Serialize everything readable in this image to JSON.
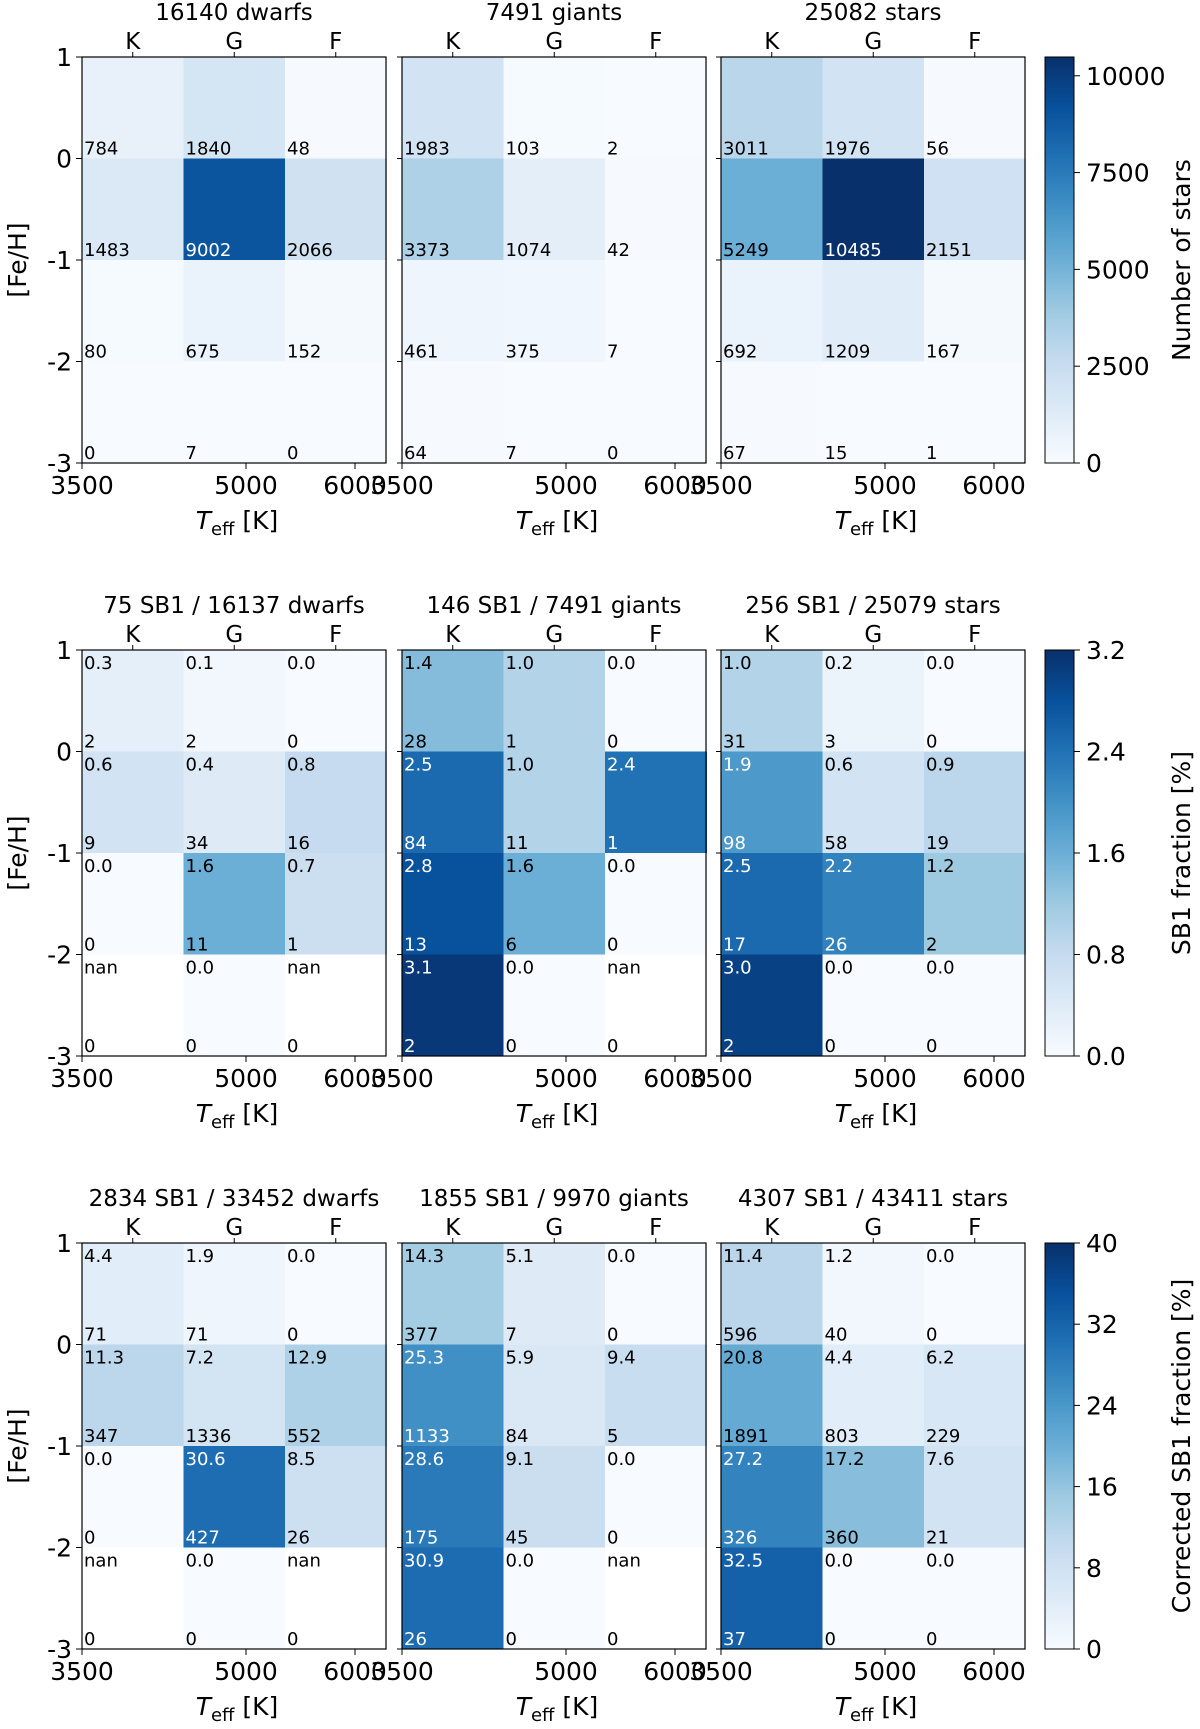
{
  "chart_data": {
    "type": "heatmap",
    "x_ticks": [
      "3500",
      "5000",
      "6000"
    ],
    "y_ticks": [
      "1",
      "0",
      "-1",
      "-2",
      "-3"
    ],
    "spectral_types": [
      "K",
      "G",
      "F"
    ],
    "ylabel": "[Fe/H]",
    "xlabel_main": "T",
    "xlabel_sub": "eff",
    "xlabel_unit": "[K]",
    "rows": [
      {
        "colorbar": {
          "label": "Number of stars",
          "ticks": [
            "0",
            "2500",
            "5000",
            "7500",
            "10000"
          ],
          "min": 0,
          "max": 10485
        },
        "panels": [
          {
            "title": "16140 dwarfs",
            "values": [
              [
                784,
                1840,
                48
              ],
              [
                1483,
                9002,
                2066
              ],
              [
                80,
                675,
                152
              ],
              [
                0,
                7,
                0
              ]
            ],
            "value_labels": [
              [
                "784",
                "1840",
                "48"
              ],
              [
                "1483",
                "9002",
                "2066"
              ],
              [
                "80",
                "675",
                "152"
              ],
              [
                "0",
                "7",
                "0"
              ]
            ],
            "count_labels": []
          },
          {
            "title": "7491 giants",
            "values": [
              [
                1983,
                103,
                2
              ],
              [
                3373,
                1074,
                42
              ],
              [
                461,
                375,
                7
              ],
              [
                64,
                7,
                0
              ]
            ],
            "value_labels": [
              [
                "1983",
                "103",
                "2"
              ],
              [
                "3373",
                "1074",
                "42"
              ],
              [
                "461",
                "375",
                "7"
              ],
              [
                "64",
                "7",
                "0"
              ]
            ],
            "count_labels": []
          },
          {
            "title": "25082 stars",
            "values": [
              [
                3011,
                1976,
                56
              ],
              [
                5249,
                10485,
                2151
              ],
              [
                692,
                1209,
                167
              ],
              [
                67,
                15,
                1
              ]
            ],
            "value_labels": [
              [
                "3011",
                "1976",
                "56"
              ],
              [
                "5249",
                "10485",
                "2151"
              ],
              [
                "692",
                "1209",
                "167"
              ],
              [
                "67",
                "15",
                "1"
              ]
            ],
            "count_labels": []
          }
        ]
      },
      {
        "colorbar": {
          "label": "SB1 fraction [%]",
          "ticks": [
            "0.0",
            "0.8",
            "1.6",
            "2.4",
            "3.2"
          ],
          "min": 0,
          "max": 3.2
        },
        "panels": [
          {
            "title": "75 SB1 / 16137 dwarfs",
            "values": [
              [
                0.3,
                0.1,
                0.0
              ],
              [
                0.6,
                0.4,
                0.8
              ],
              [
                0.0,
                1.6,
                0.7
              ],
              [
                null,
                0.0,
                null
              ]
            ],
            "value_labels": [
              [
                "0.3",
                "0.1",
                "0.0"
              ],
              [
                "0.6",
                "0.4",
                "0.8"
              ],
              [
                "0.0",
                "1.6",
                "0.7"
              ],
              [
                "nan",
                "0.0",
                "nan"
              ]
            ],
            "count_labels": [
              [
                "2",
                "2",
                "0"
              ],
              [
                "9",
                "34",
                "16"
              ],
              [
                "0",
                "11",
                "1"
              ],
              [
                "0",
                "0",
                "0"
              ]
            ]
          },
          {
            "title": "146 SB1 / 7491 giants",
            "values": [
              [
                1.4,
                1.0,
                0.0
              ],
              [
                2.5,
                1.0,
                2.4
              ],
              [
                2.8,
                1.6,
                0.0
              ],
              [
                3.1,
                0.0,
                null
              ]
            ],
            "value_labels": [
              [
                "1.4",
                "1.0",
                "0.0"
              ],
              [
                "2.5",
                "1.0",
                "2.4"
              ],
              [
                "2.8",
                "1.6",
                "0.0"
              ],
              [
                "3.1",
                "0.0",
                "nan"
              ]
            ],
            "count_labels": [
              [
                "28",
                "1",
                "0"
              ],
              [
                "84",
                "11",
                "1"
              ],
              [
                "13",
                "6",
                "0"
              ],
              [
                "2",
                "0",
                "0"
              ]
            ]
          },
          {
            "title": "256 SB1 / 25079 stars",
            "values": [
              [
                1.0,
                0.2,
                0.0
              ],
              [
                1.9,
                0.6,
                0.9
              ],
              [
                2.5,
                2.2,
                1.2
              ],
              [
                3.0,
                0.0,
                0.0
              ]
            ],
            "value_labels": [
              [
                "1.0",
                "0.2",
                "0.0"
              ],
              [
                "1.9",
                "0.6",
                "0.9"
              ],
              [
                "2.5",
                "2.2",
                "1.2"
              ],
              [
                "3.0",
                "0.0",
                "0.0"
              ]
            ],
            "count_labels": [
              [
                "31",
                "3",
                "0"
              ],
              [
                "98",
                "58",
                "19"
              ],
              [
                "17",
                "26",
                "2"
              ],
              [
                "2",
                "0",
                "0"
              ]
            ]
          }
        ]
      },
      {
        "colorbar": {
          "label": "Corrected SB1 fraction [%]",
          "ticks": [
            "0",
            "8",
            "16",
            "24",
            "32",
            "40"
          ],
          "min": 0,
          "max": 40
        },
        "panels": [
          {
            "title": "2834 SB1 / 33452 dwarfs",
            "values": [
              [
                4.4,
                1.9,
                0.0
              ],
              [
                11.3,
                7.2,
                12.9
              ],
              [
                0.0,
                30.6,
                8.5
              ],
              [
                null,
                0.0,
                null
              ]
            ],
            "value_labels": [
              [
                "4.4",
                "1.9",
                "0.0"
              ],
              [
                "11.3",
                "7.2",
                "12.9"
              ],
              [
                "0.0",
                "30.6",
                "8.5"
              ],
              [
                "nan",
                "0.0",
                "nan"
              ]
            ],
            "count_labels": [
              [
                "71",
                "71",
                "0"
              ],
              [
                "347",
                "1336",
                "552"
              ],
              [
                "0",
                "427",
                "26"
              ],
              [
                "0",
                "0",
                "0"
              ]
            ]
          },
          {
            "title": "1855 SB1 / 9970 giants",
            "values": [
              [
                14.3,
                5.1,
                0.0
              ],
              [
                25.3,
                5.9,
                9.4
              ],
              [
                28.6,
                9.1,
                0.0
              ],
              [
                30.9,
                0.0,
                null
              ]
            ],
            "value_labels": [
              [
                "14.3",
                "5.1",
                "0.0"
              ],
              [
                "25.3",
                "5.9",
                "9.4"
              ],
              [
                "28.6",
                "9.1",
                "0.0"
              ],
              [
                "30.9",
                "0.0",
                "nan"
              ]
            ],
            "count_labels": [
              [
                "377",
                "7",
                "0"
              ],
              [
                "1133",
                "84",
                "5"
              ],
              [
                "175",
                "45",
                "0"
              ],
              [
                "26",
                "0",
                "0"
              ]
            ]
          },
          {
            "title": "4307 SB1 / 43411 stars",
            "values": [
              [
                11.4,
                1.2,
                0.0
              ],
              [
                20.8,
                4.4,
                6.2
              ],
              [
                27.2,
                17.2,
                7.6
              ],
              [
                32.5,
                0.0,
                0.0
              ]
            ],
            "value_labels": [
              [
                "11.4",
                "1.2",
                "0.0"
              ],
              [
                "20.8",
                "4.4",
                "6.2"
              ],
              [
                "27.2",
                "17.2",
                "7.6"
              ],
              [
                "32.5",
                "0.0",
                "0.0"
              ]
            ],
            "count_labels": [
              [
                "596",
                "40",
                "0"
              ],
              [
                "1891",
                "803",
                "229"
              ],
              [
                "326",
                "360",
                "21"
              ],
              [
                "37",
                "0",
                "0"
              ]
            ]
          }
        ]
      }
    ]
  }
}
